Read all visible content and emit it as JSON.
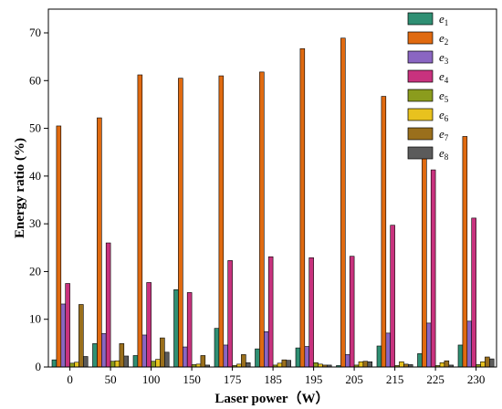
{
  "chart_data": {
    "type": "bar",
    "xlabel": "Laser power（W）",
    "ylabel": "Energy ratio (%)",
    "ylim": [
      0,
      75
    ],
    "yticks": [
      0,
      10,
      20,
      30,
      40,
      50,
      60,
      70
    ],
    "grid": false,
    "legend_position": "top-right",
    "categories": [
      "0",
      "50",
      "100",
      "150",
      "175",
      "185",
      "195",
      "205",
      "215",
      "225",
      "230"
    ],
    "series": [
      {
        "name": "e1",
        "color": "#2f8f73",
        "values": [
          1.5,
          4.9,
          2.4,
          16.2,
          8.1,
          3.8,
          4.0,
          0.3,
          4.4,
          2.8,
          4.6
        ]
      },
      {
        "name": "e2",
        "color": "#e06a10",
        "values": [
          50.5,
          52.2,
          61.2,
          60.5,
          61.0,
          61.8,
          66.7,
          68.9,
          56.7,
          44.2,
          48.3
        ]
      },
      {
        "name": "e3",
        "color": "#8a66c2",
        "values": [
          13.2,
          7.0,
          6.7,
          4.2,
          4.6,
          7.4,
          4.3,
          2.6,
          7.1,
          9.2,
          9.6
        ]
      },
      {
        "name": "e4",
        "color": "#c8327e",
        "values": [
          17.5,
          26.0,
          17.7,
          15.6,
          22.3,
          23.1,
          22.9,
          23.2,
          29.7,
          41.3,
          31.2
        ]
      },
      {
        "name": "e5",
        "color": "#8b9c1d",
        "values": [
          0.8,
          1.2,
          1.2,
          0.5,
          0.3,
          0.4,
          0.9,
          0.4,
          0.3,
          0.3,
          0.5
        ]
      },
      {
        "name": "e6",
        "color": "#e8c21e",
        "values": [
          1.0,
          1.3,
          1.6,
          0.6,
          0.6,
          0.8,
          0.6,
          1.1,
          1.1,
          0.9,
          1.1
        ]
      },
      {
        "name": "e7",
        "color": "#9a6f1c",
        "values": [
          13.1,
          4.9,
          6.1,
          2.4,
          2.6,
          1.5,
          0.4,
          1.2,
          0.6,
          1.3,
          2.1
        ]
      },
      {
        "name": "e8",
        "color": "#5b5b5b",
        "values": [
          2.2,
          2.3,
          3.1,
          0.4,
          0.9,
          1.4,
          0.4,
          1.1,
          0.5,
          0.4,
          1.7
        ]
      }
    ]
  }
}
